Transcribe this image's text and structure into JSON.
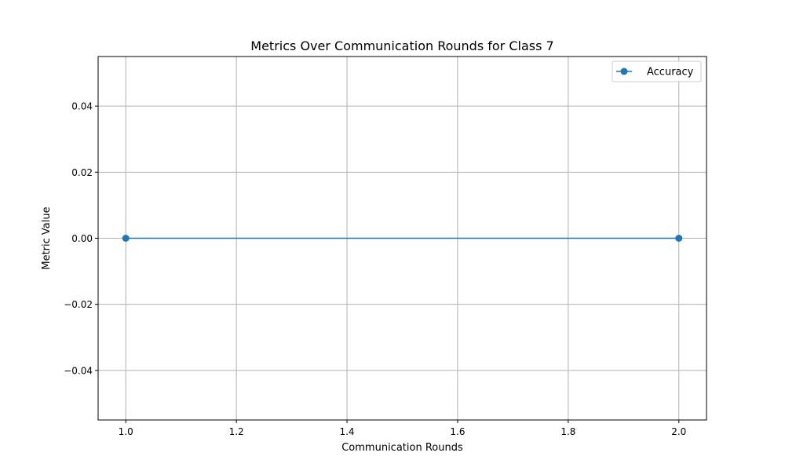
{
  "chart_data": {
    "type": "line",
    "title": "Metrics Over Communication Rounds for Class 7",
    "xlabel": "Communication Rounds",
    "ylabel": "Metric Value",
    "xlim": [
      0.95,
      2.05
    ],
    "ylim": [
      -0.055,
      0.055
    ],
    "x_ticks": [
      1.0,
      1.2,
      1.4,
      1.6,
      1.8,
      2.0
    ],
    "x_tick_labels": [
      "1.0",
      "1.2",
      "1.4",
      "1.6",
      "1.8",
      "2.0"
    ],
    "y_ticks": [
      -0.04,
      -0.02,
      0.0,
      0.02,
      0.04
    ],
    "y_tick_labels": [
      "−0.04",
      "−0.02",
      "0.00",
      "0.02",
      "0.04"
    ],
    "grid": true,
    "legend_position": "top-right",
    "series": [
      {
        "name": "Accuracy",
        "color": "#1f77b4",
        "marker": "circle",
        "x": [
          1.0,
          2.0
        ],
        "y": [
          0.0,
          0.0
        ]
      }
    ]
  }
}
